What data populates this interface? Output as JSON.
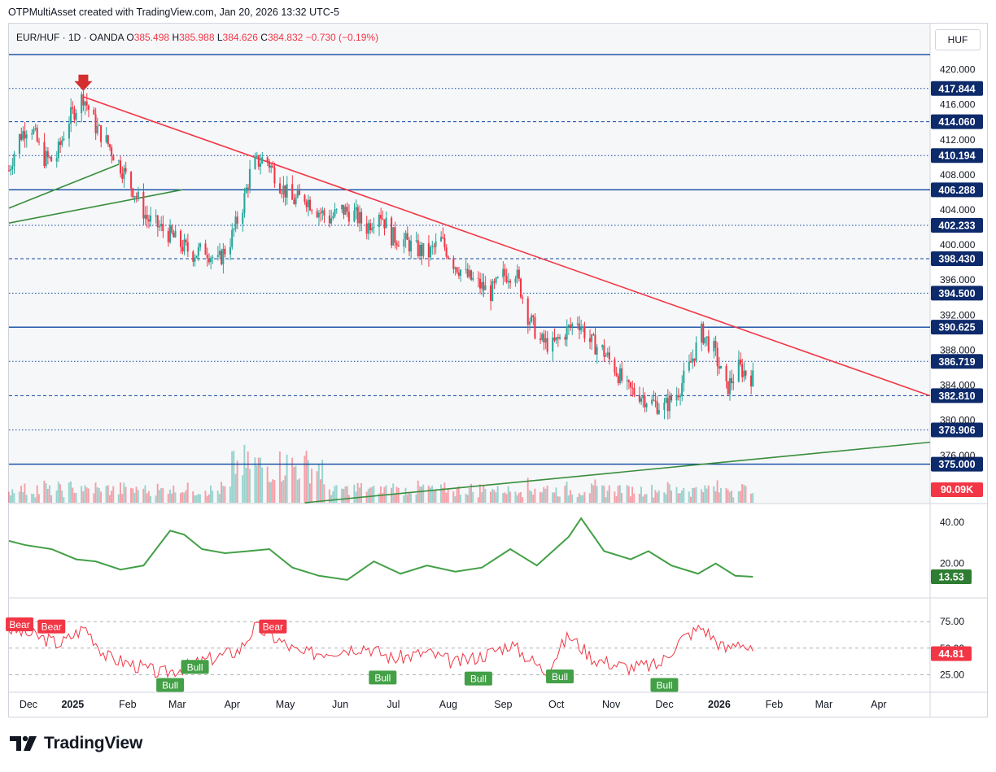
{
  "header": "OTPMultiAsset created with TradingView.com, Jan 20, 2026 13:32 UTC-5",
  "ohlc": {
    "symbol": "EUR/HUF · 1D · OANDA",
    "o_label": "O",
    "o": "385.498",
    "h_label": "H",
    "h": "385.988",
    "l_label": "L",
    "l": "384.626",
    "c_label": "C",
    "c": "384.832",
    "change": "−0.730 (−0.19%)"
  },
  "currency": "HUF",
  "logo": "TradingView",
  "colors": {
    "up": "#26a69a",
    "down": "#f23645",
    "trend_red": "#f23645",
    "trend_green": "#388e3c",
    "level": "#0d47a1",
    "adx": "#43a047",
    "rsi": "#f23645"
  },
  "chart_data": {
    "type": "candlestick",
    "x_ticks": [
      "Dec",
      "2025",
      "Feb",
      "Mar",
      "Apr",
      "May",
      "Jun",
      "Jul",
      "Aug",
      "Sep",
      "Oct",
      "Nov",
      "Dec",
      "2026",
      "Feb",
      "Mar",
      "Apr"
    ],
    "y_ticks": [
      "420.000",
      "416.000",
      "412.000",
      "408.000",
      "404.000",
      "400.000",
      "396.000",
      "392.000",
      "388.000",
      "384.000",
      "380.000",
      "376.000",
      "372.000"
    ],
    "ylim": [
      370.6,
      422.0
    ],
    "levels": [
      {
        "value": 421.7,
        "label": "",
        "style": "solid"
      },
      {
        "value": 417.844,
        "label": "417.844",
        "style": "dotted"
      },
      {
        "value": 414.06,
        "label": "414.060",
        "style": "dashed"
      },
      {
        "value": 410.194,
        "label": "410.194",
        "style": "dotted"
      },
      {
        "value": 406.288,
        "label": "406.288",
        "style": "solid"
      },
      {
        "value": 402.233,
        "label": "402.233",
        "style": "dotted"
      },
      {
        "value": 398.43,
        "label": "398.430",
        "style": "dashed"
      },
      {
        "value": 394.5,
        "label": "394.500",
        "style": "dotted"
      },
      {
        "value": 390.625,
        "label": "390.625",
        "style": "solid"
      },
      {
        "value": 386.719,
        "label": "386.719",
        "style": "dotted"
      },
      {
        "value": 382.81,
        "label": "382.810",
        "style": "dashed"
      },
      {
        "value": 378.906,
        "label": "378.906",
        "style": "dotted"
      },
      {
        "value": 375.0,
        "label": "375.000",
        "style": "solid"
      }
    ],
    "price_path": [
      [
        "2024-11-26",
        408.5
      ],
      [
        "2024-12-01",
        412.0
      ],
      [
        "2024-12-08",
        414.0
      ],
      [
        "2024-12-15",
        410.0
      ],
      [
        "2024-12-22",
        409.5
      ],
      [
        "2024-12-29",
        414.0
      ],
      [
        "2025-01-07",
        417.0
      ],
      [
        "2025-01-14",
        413.5
      ],
      [
        "2025-01-21",
        411.5
      ],
      [
        "2025-01-28",
        409.0
      ],
      [
        "2025-02-05",
        406.0
      ],
      [
        "2025-02-12",
        403.0
      ],
      [
        "2025-02-19",
        402.0
      ],
      [
        "2025-02-26",
        401.0
      ],
      [
        "2025-03-03",
        400.0
      ],
      [
        "2025-03-10",
        399.0
      ],
      [
        "2025-03-17",
        399.5
      ],
      [
        "2025-03-24",
        398.0
      ],
      [
        "2025-03-31",
        400.5
      ],
      [
        "2025-04-07",
        404.5
      ],
      [
        "2025-04-12",
        409.0
      ],
      [
        "2025-04-20",
        410.0
      ],
      [
        "2025-04-28",
        407.0
      ],
      [
        "2025-05-05",
        405.0
      ],
      [
        "2025-05-12",
        405.5
      ],
      [
        "2025-05-19",
        404.0
      ],
      [
        "2025-05-26",
        403.0
      ],
      [
        "2025-06-02",
        404.0
      ],
      [
        "2025-06-09",
        403.5
      ],
      [
        "2025-06-16",
        402.0
      ],
      [
        "2025-06-23",
        404.0
      ],
      [
        "2025-06-30",
        401.0
      ],
      [
        "2025-07-07",
        400.5
      ],
      [
        "2025-07-14",
        399.5
      ],
      [
        "2025-07-21",
        399.0
      ],
      [
        "2025-07-28",
        400.5
      ],
      [
        "2025-08-04",
        398.0
      ],
      [
        "2025-08-11",
        396.5
      ],
      [
        "2025-08-18",
        395.5
      ],
      [
        "2025-08-25",
        394.5
      ],
      [
        "2025-09-01",
        396.5
      ],
      [
        "2025-09-08",
        397.0
      ],
      [
        "2025-09-15",
        392.0
      ],
      [
        "2025-09-22",
        389.0
      ],
      [
        "2025-09-29",
        388.5
      ],
      [
        "2025-10-06",
        390.0
      ],
      [
        "2025-10-13",
        391.5
      ],
      [
        "2025-10-20",
        389.0
      ],
      [
        "2025-10-27",
        388.0
      ],
      [
        "2025-11-03",
        386.0
      ],
      [
        "2025-11-10",
        383.5
      ],
      [
        "2025-11-17",
        383.0
      ],
      [
        "2025-11-24",
        382.0
      ],
      [
        "2025-12-01",
        381.5
      ],
      [
        "2025-12-08",
        383.0
      ],
      [
        "2025-12-15",
        386.0
      ],
      [
        "2025-12-22",
        390.0
      ],
      [
        "2025-12-29",
        388.0
      ],
      [
        "2026-01-05",
        383.5
      ],
      [
        "2026-01-12",
        386.0
      ],
      [
        "2026-01-20",
        384.8
      ]
    ],
    "trendlines": [
      {
        "name": "down",
        "color": "red",
        "from": [
          "2025-01-07",
          416.9
        ],
        "to": [
          "2026-04-30",
          382.8
        ]
      },
      {
        "name": "up1",
        "color": "green",
        "from": [
          "2024-11-26",
          402.5
        ],
        "to": [
          "2025-03-04",
          406.3
        ]
      },
      {
        "name": "up2",
        "color": "green",
        "from": [
          "2024-11-26",
          404.2
        ],
        "to": [
          "2025-01-27",
          409.2
        ]
      },
      {
        "name": "up3",
        "color": "green",
        "from": [
          "2025-05-12",
          370.6
        ],
        "to": [
          "2026-04-30",
          377.5
        ]
      }
    ],
    "volume": {
      "last": "90.09K"
    },
    "adx": {
      "last": "13.53",
      "ticks": [
        "40.00",
        "20.00"
      ],
      "ylim": [
        4,
        48
      ],
      "points": [
        [
          "2024-11-26",
          31
        ],
        [
          "2024-12-05",
          29
        ],
        [
          "2024-12-20",
          27
        ],
        [
          "2025-01-03",
          22
        ],
        [
          "2025-01-14",
          21
        ],
        [
          "2025-01-28",
          17
        ],
        [
          "2025-02-10",
          19
        ],
        [
          "2025-02-25",
          36
        ],
        [
          "2025-03-05",
          34
        ],
        [
          "2025-03-15",
          27
        ],
        [
          "2025-03-28",
          25
        ],
        [
          "2025-04-10",
          26
        ],
        [
          "2025-04-22",
          27
        ],
        [
          "2025-05-05",
          18
        ],
        [
          "2025-05-20",
          14
        ],
        [
          "2025-06-05",
          12
        ],
        [
          "2025-06-20",
          21
        ],
        [
          "2025-07-05",
          15
        ],
        [
          "2025-07-20",
          19
        ],
        [
          "2025-08-05",
          16
        ],
        [
          "2025-08-20",
          18
        ],
        [
          "2025-09-05",
          27
        ],
        [
          "2025-09-20",
          19
        ],
        [
          "2025-10-08",
          33
        ],
        [
          "2025-10-15",
          42
        ],
        [
          "2025-10-28",
          26
        ],
        [
          "2025-11-12",
          22
        ],
        [
          "2025-11-22",
          26
        ],
        [
          "2025-12-05",
          19
        ],
        [
          "2025-12-20",
          15
        ],
        [
          "2025-12-30",
          20
        ],
        [
          "2026-01-10",
          14
        ],
        [
          "2026-01-20",
          13.5
        ]
      ]
    },
    "rsi": {
      "last": "44.81",
      "ticks": [
        "75.00",
        "50.00",
        "25.00"
      ],
      "ylim": [
        10,
        95
      ],
      "points": [
        [
          "2024-11-26",
          68
        ],
        [
          "2024-12-10",
          62
        ],
        [
          "2024-12-25",
          54
        ],
        [
          "2025-01-08",
          70
        ],
        [
          "2025-01-20",
          42
        ],
        [
          "2025-02-05",
          34
        ],
        [
          "2025-02-20",
          26
        ],
        [
          "2025-03-05",
          32
        ],
        [
          "2025-03-20",
          40
        ],
        [
          "2025-04-05",
          48
        ],
        [
          "2025-04-14",
          70
        ],
        [
          "2025-04-25",
          60
        ],
        [
          "2025-05-10",
          44
        ],
        [
          "2025-05-28",
          48
        ],
        [
          "2025-06-15",
          52
        ],
        [
          "2025-07-01",
          40
        ],
        [
          "2025-07-20",
          46
        ],
        [
          "2025-08-05",
          36
        ],
        [
          "2025-08-22",
          44
        ],
        [
          "2025-09-05",
          54
        ],
        [
          "2025-09-25",
          28
        ],
        [
          "2025-10-08",
          62
        ],
        [
          "2025-10-22",
          40
        ],
        [
          "2025-11-10",
          32
        ],
        [
          "2025-11-28",
          34
        ],
        [
          "2025-12-10",
          58
        ],
        [
          "2025-12-22",
          70
        ],
        [
          "2026-01-05",
          48
        ],
        [
          "2026-01-12",
          58
        ],
        [
          "2026-01-20",
          44.8
        ]
      ]
    },
    "signals": [
      {
        "text": "Bear",
        "date": "2024-12-02",
        "value": 72,
        "kind": "bear"
      },
      {
        "text": "Bear",
        "date": "2024-12-20",
        "value": 70,
        "kind": "bear"
      },
      {
        "text": "Bull",
        "date": "2025-02-25",
        "value": 15,
        "kind": "bull"
      },
      {
        "text": "Bull",
        "date": "2025-03-11",
        "value": 32,
        "kind": "bull"
      },
      {
        "text": "Bear",
        "date": "2025-04-24",
        "value": 70,
        "kind": "bear"
      },
      {
        "text": "Bull",
        "date": "2025-06-25",
        "value": 22,
        "kind": "bull"
      },
      {
        "text": "Bull",
        "date": "2025-08-18",
        "value": 21,
        "kind": "bull"
      },
      {
        "text": "Bull",
        "date": "2025-10-03",
        "value": 23,
        "kind": "bull"
      },
      {
        "text": "Bull",
        "date": "2025-12-01",
        "value": 15,
        "kind": "bull"
      }
    ]
  }
}
